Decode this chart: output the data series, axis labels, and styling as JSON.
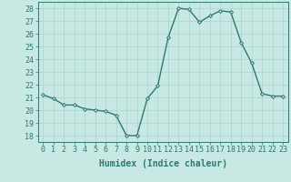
{
  "x": [
    0,
    1,
    2,
    3,
    4,
    5,
    6,
    7,
    8,
    9,
    10,
    11,
    12,
    13,
    14,
    15,
    16,
    17,
    18,
    19,
    20,
    21,
    22,
    23
  ],
  "y": [
    21.2,
    20.9,
    20.4,
    20.4,
    20.1,
    20.0,
    19.9,
    19.6,
    18.0,
    18.0,
    20.9,
    21.9,
    25.7,
    28.0,
    27.9,
    26.9,
    27.4,
    27.8,
    27.7,
    25.3,
    23.7,
    21.3,
    21.1,
    21.1
  ],
  "line_color": "#2d7a6e",
  "marker": "D",
  "marker_size": 2.0,
  "line_width": 1.0,
  "bg_color": "#c8e8e4",
  "grid_color": "#a8d4ce",
  "xlabel": "Humidex (Indice chaleur)",
  "xlim": [
    -0.5,
    23.5
  ],
  "ylim": [
    17.5,
    28.5
  ],
  "yticks": [
    18,
    19,
    20,
    21,
    22,
    23,
    24,
    25,
    26,
    27,
    28
  ],
  "xticks": [
    0,
    1,
    2,
    3,
    4,
    5,
    6,
    7,
    8,
    9,
    10,
    11,
    12,
    13,
    14,
    15,
    16,
    17,
    18,
    19,
    20,
    21,
    22,
    23
  ],
  "tick_label_size": 6,
  "xlabel_size": 7,
  "tick_color": "#2d7a6e",
  "axis_color": "#2d7a6e"
}
